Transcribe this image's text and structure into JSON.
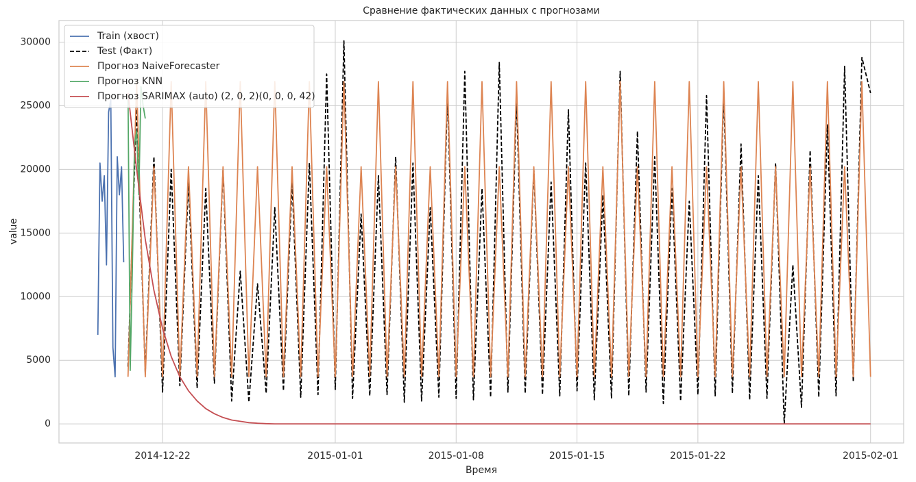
{
  "chart_data": {
    "type": "line",
    "title": "Сравнение фактических данных с прогнозами",
    "x_label": "Время",
    "y_label": "value",
    "xlim": [
      "2014-12-16 00:00",
      "2015-02-02 22:00"
    ],
    "xticks": [
      "2014-12-22",
      "2015-01-01",
      "2015-01-08",
      "2015-01-15",
      "2015-01-22",
      "2015-02-01"
    ],
    "ylim": [
      -1500,
      31700
    ],
    "yticks": [
      0,
      5000,
      10000,
      15000,
      20000,
      25000,
      30000
    ],
    "grid": true,
    "legend": "upper left",
    "x": [
      "2014-12-20 00:00",
      "2014-12-20 12:00",
      "2014-12-21 00:00",
      "2014-12-21 12:00",
      "2014-12-22 00:00",
      "2014-12-22 12:00",
      "2014-12-23 00:00",
      "2014-12-23 12:00",
      "2014-12-24 00:00",
      "2014-12-24 12:00",
      "2014-12-25 00:00",
      "2014-12-25 12:00",
      "2014-12-26 00:00",
      "2014-12-26 12:00",
      "2014-12-27 00:00",
      "2014-12-27 12:00",
      "2014-12-28 00:00",
      "2014-12-28 12:00",
      "2014-12-29 00:00",
      "2014-12-29 12:00",
      "2014-12-30 00:00",
      "2014-12-30 12:00",
      "2014-12-31 00:00",
      "2014-12-31 12:00",
      "2015-01-01 00:00",
      "2015-01-01 12:00",
      "2015-01-02 00:00",
      "2015-01-02 12:00",
      "2015-01-03 00:00",
      "2015-01-03 12:00",
      "2015-01-04 00:00",
      "2015-01-04 12:00",
      "2015-01-05 00:00",
      "2015-01-05 12:00",
      "2015-01-06 00:00",
      "2015-01-06 12:00",
      "2015-01-07 00:00",
      "2015-01-07 12:00",
      "2015-01-08 00:00",
      "2015-01-08 12:00",
      "2015-01-09 00:00",
      "2015-01-09 12:00",
      "2015-01-10 00:00",
      "2015-01-10 12:00",
      "2015-01-11 00:00",
      "2015-01-11 12:00",
      "2015-01-12 00:00",
      "2015-01-12 12:00",
      "2015-01-13 00:00",
      "2015-01-13 12:00",
      "2015-01-14 00:00",
      "2015-01-14 12:00",
      "2015-01-15 00:00",
      "2015-01-15 12:00",
      "2015-01-16 00:00",
      "2015-01-16 12:00",
      "2015-01-17 00:00",
      "2015-01-17 12:00",
      "2015-01-18 00:00",
      "2015-01-18 12:00",
      "2015-01-19 00:00",
      "2015-01-19 12:00",
      "2015-01-20 00:00",
      "2015-01-20 12:00",
      "2015-01-21 00:00",
      "2015-01-21 12:00",
      "2015-01-22 00:00",
      "2015-01-22 12:00",
      "2015-01-23 00:00",
      "2015-01-23 12:00",
      "2015-01-24 00:00",
      "2015-01-24 12:00",
      "2015-01-25 00:00",
      "2015-01-25 12:00",
      "2015-01-26 00:00",
      "2015-01-26 12:00",
      "2015-01-27 00:00",
      "2015-01-27 12:00",
      "2015-01-28 00:00",
      "2015-01-28 12:00",
      "2015-01-29 00:00",
      "2015-01-29 12:00",
      "2015-01-30 00:00",
      "2015-01-30 12:00",
      "2015-01-31 00:00",
      "2015-01-31 12:00",
      "2015-02-01 00:00"
    ],
    "series": [
      {
        "name": "Train (хвост)",
        "color": "#4c72b0",
        "linestyle": "solid",
        "x": [
          "2014-12-18 06:00",
          "2014-12-18 09:00",
          "2014-12-18 12:00",
          "2014-12-18 15:00",
          "2014-12-18 18:00",
          "2014-12-18 21:00",
          "2014-12-19 00:00",
          "2014-12-19 03:00",
          "2014-12-19 06:00",
          "2014-12-19 09:00",
          "2014-12-19 12:00",
          "2014-12-19 15:00",
          "2014-12-19 18:00"
        ],
        "values": [
          7000,
          20500,
          17500,
          19500,
          12500,
          24500,
          25500,
          6000,
          3700,
          21000,
          18000,
          20200,
          12700
        ]
      },
      {
        "name": "Test (Факт)",
        "color": "#000000",
        "linestyle": "dashed",
        "values": [
          4500,
          25000,
          4000,
          21000,
          2500,
          20000,
          3000,
          19000,
          2800,
          18500,
          3200,
          20000,
          1800,
          12000,
          1700,
          11000,
          2400,
          17000,
          2600,
          19000,
          2100,
          20500,
          2300,
          27500,
          2700,
          30100,
          2000,
          16500,
          2200,
          19500,
          2300,
          21000,
          1700,
          20500,
          1800,
          17000,
          2100,
          26000,
          2000,
          27700,
          1900,
          18500,
          2100,
          28400,
          2500,
          25500,
          2400,
          20000,
          2300,
          19000,
          2200,
          24700,
          2600,
          20500,
          1900,
          18000,
          2000,
          27700,
          2200,
          23000,
          2500,
          21000,
          1600,
          18500,
          1800,
          17500,
          2300,
          25800,
          2200,
          26000,
          2400,
          22000,
          1900,
          19500,
          2000,
          20500,
          0,
          12500,
          1300,
          21500,
          2100,
          23500,
          2200,
          28100,
          3300,
          28800,
          26000
        ]
      },
      {
        "name": "Прогноз NaiveForecaster",
        "color": "#dd8452",
        "linestyle": "solid",
        "values": [
          3700,
          26900,
          3700,
          20200,
          3700,
          26900,
          3700,
          20200,
          3700,
          26900,
          3700,
          20200,
          3700,
          26900,
          3700,
          20200,
          3700,
          26900,
          3700,
          20200,
          3700,
          26900,
          3700,
          20200,
          3700,
          26900,
          3700,
          20200,
          3700,
          26900,
          3700,
          20200,
          3700,
          26900,
          3700,
          20200,
          3700,
          26900,
          3700,
          20200,
          3700,
          26900,
          3700,
          20200,
          3700,
          26900,
          3700,
          20200,
          3700,
          26900,
          3700,
          20200,
          3700,
          26900,
          3700,
          20200,
          3700,
          26900,
          3700,
          20200,
          3700,
          26900,
          3700,
          20200,
          3700,
          26900,
          3700,
          20200,
          3700,
          26900,
          3700,
          20200,
          3700,
          26900,
          3700,
          20200,
          3700,
          26900,
          3700,
          20200,
          3700,
          26900,
          3700,
          20200,
          3700,
          26900,
          3700
        ]
      },
      {
        "name": "Прогноз KNN",
        "color": "#55a868",
        "linestyle": "solid",
        "x": [
          "2014-12-20 00:00",
          "2014-12-20 03:00",
          "2014-12-20 06:00",
          "2014-12-20 09:00",
          "2014-12-20 12:00",
          "2014-12-20 15:00",
          "2014-12-20 18:00",
          "2014-12-20 21:00",
          "2014-12-21 00:00"
        ],
        "values": [
          26000,
          4200,
          12000,
          22000,
          23000,
          18000,
          26500,
          25000,
          24000
        ]
      },
      {
        "name": "Прогноз SARIMAX (auto) (2, 0, 2)(0, 0, 0, 42)",
        "color": "#c44e52",
        "linestyle": "solid",
        "values": [
          26000,
          20000,
          14500,
          10500,
          7500,
          5300,
          3700,
          2600,
          1800,
          1200,
          800,
          500,
          300,
          200,
          100,
          50,
          20,
          0,
          0,
          0,
          0,
          0,
          0,
          0,
          0,
          0,
          0,
          0,
          0,
          0,
          0,
          0,
          0,
          0,
          0,
          0,
          0,
          0,
          0,
          0,
          0,
          0,
          0,
          0,
          0,
          0,
          0,
          0,
          0,
          0,
          0,
          0,
          0,
          0,
          0,
          0,
          0,
          0,
          0,
          0,
          0,
          0,
          0,
          0,
          0,
          0,
          0,
          0,
          0,
          0,
          0,
          0,
          0,
          0,
          0,
          0,
          0,
          0,
          0,
          0,
          0,
          0,
          0,
          0,
          0,
          0,
          0
        ]
      }
    ]
  }
}
